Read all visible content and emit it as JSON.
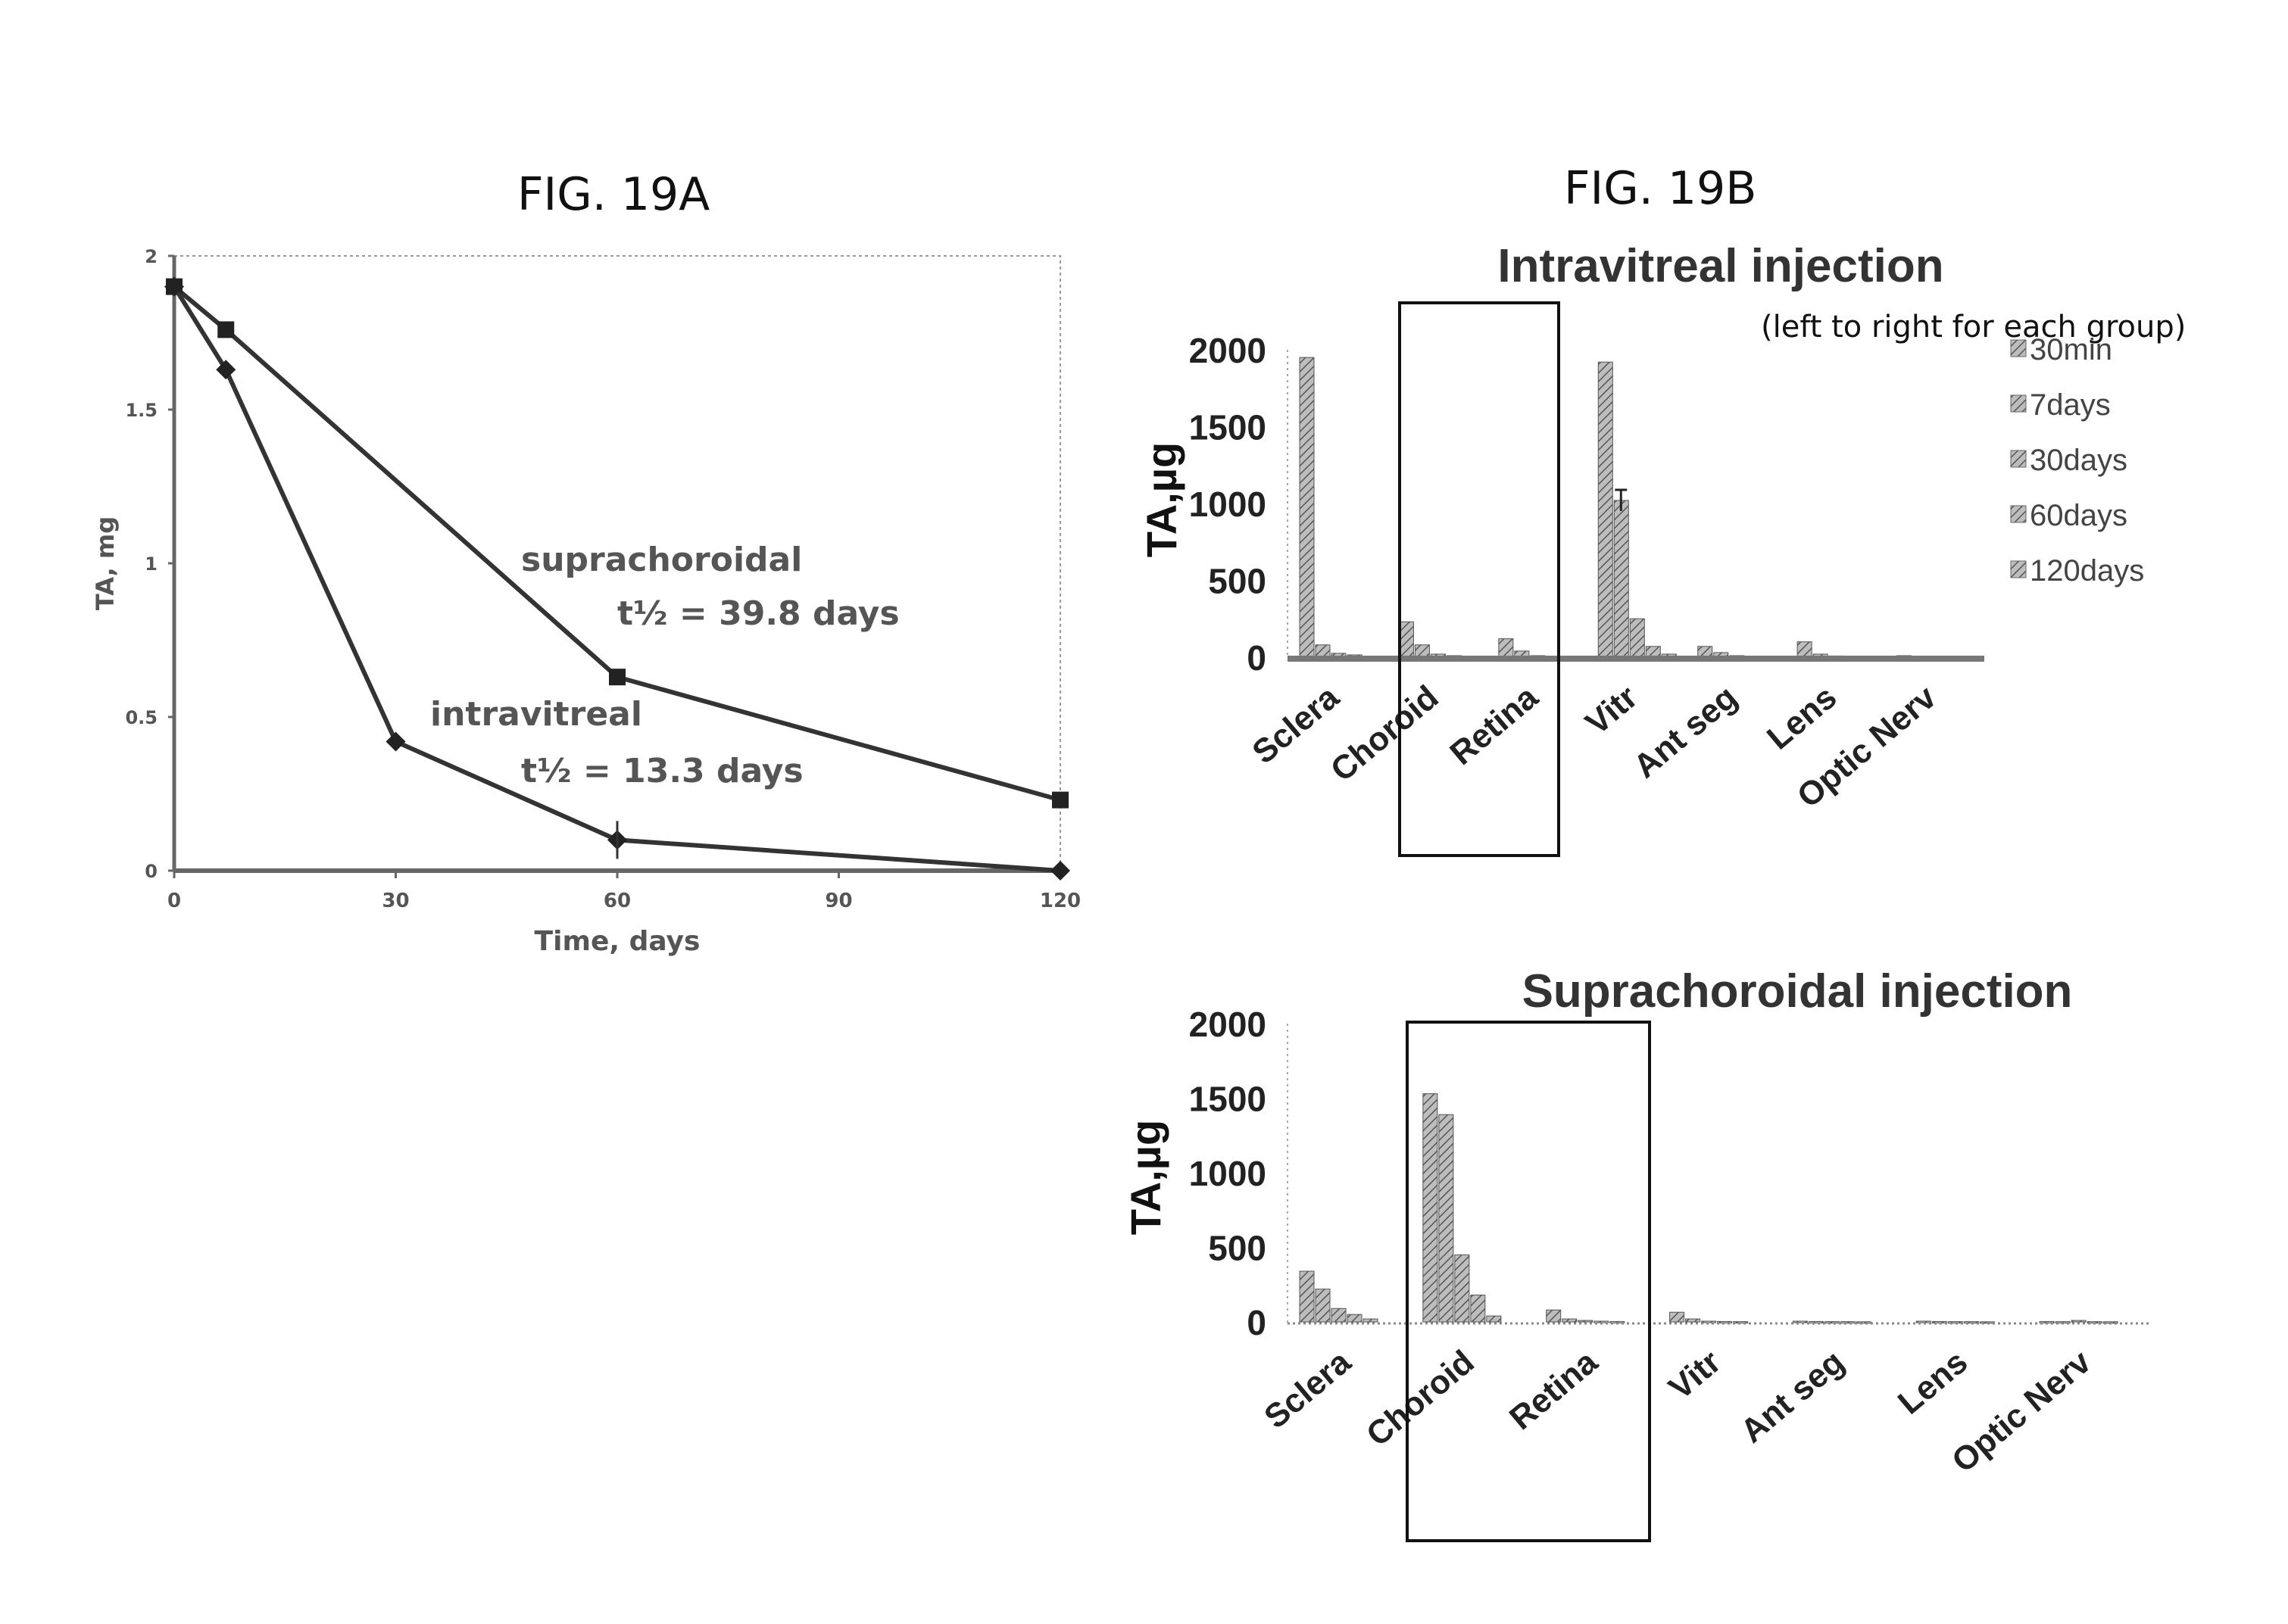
{
  "chart_data": [
    {
      "id": "fig19a",
      "type": "line",
      "title": "FIG. 19A",
      "xlabel": "Time, days",
      "ylabel": "TA, mg",
      "xlim": [
        0,
        120
      ],
      "ylim": [
        0,
        2
      ],
      "xticks": [
        "0",
        "30",
        "60",
        "90",
        "120"
      ],
      "yticks": [
        "0",
        "0.5",
        "1",
        "1.5",
        "2"
      ],
      "grid": false,
      "series": [
        {
          "name": "suprachoroidal",
          "x": [
            0,
            7,
            60,
            120
          ],
          "y": [
            1.9,
            1.76,
            0.63,
            0.23
          ]
        },
        {
          "name": "intravitreal",
          "x": [
            0,
            7,
            30,
            60,
            120
          ],
          "y": [
            1.9,
            1.63,
            0.42,
            0.1,
            0.0
          ]
        }
      ],
      "annotations": {
        "supra_label": "suprachoroidal",
        "supra_half_life": "t½ = 39.8 days",
        "intra_label": "intravitreal",
        "intra_half_life": "t½ = 13.3 days"
      }
    },
    {
      "id": "fig19b_intravitreal",
      "type": "bar",
      "figure_label": "FIG. 19B",
      "title": "Intravitreal injection",
      "note": "(left to right for each group)",
      "ylabel": "TA,µg",
      "ylim": [
        0,
        2000
      ],
      "yticks": [
        "0",
        "500",
        "1000",
        "1500",
        "2000"
      ],
      "categories": [
        "Sclera",
        "Choroid",
        "Retina",
        "Vitr",
        "Ant seg",
        "Lens",
        "Optic Nerv"
      ],
      "legend": [
        "30min",
        "7days",
        "30days",
        "60days",
        "120days"
      ],
      "legend_position": "right",
      "highlight_box": [
        "Choroid",
        "Retina"
      ],
      "series": [
        {
          "name": "30min",
          "values": [
            1950,
            230,
            120,
            1920,
            70,
            100,
            10
          ]
        },
        {
          "name": "7days",
          "values": [
            80,
            80,
            40,
            1020,
            30,
            20,
            5
          ]
        },
        {
          "name": "30days",
          "values": [
            25,
            20,
            10,
            250,
            10,
            8,
            3
          ]
        },
        {
          "name": "60days",
          "values": [
            15,
            10,
            5,
            70,
            5,
            3,
            2
          ]
        },
        {
          "name": "120days",
          "values": [
            5,
            5,
            3,
            20,
            3,
            2,
            1
          ]
        }
      ]
    },
    {
      "id": "fig19b_suprachoroidal",
      "type": "bar",
      "title": "Suprachoroidal injection",
      "ylabel": "TA,µg",
      "ylim": [
        0,
        2000
      ],
      "yticks": [
        "0",
        "500",
        "1000",
        "1500",
        "2000"
      ],
      "categories": [
        "Sclera",
        "Choroid",
        "Retina",
        "Vitr",
        "Ant seg",
        "Lens",
        "Optic Nerv"
      ],
      "highlight_box": [
        "Choroid",
        "Retina"
      ],
      "series": [
        {
          "name": "30min",
          "values": [
            340,
            1530,
            80,
            65,
            5,
            5,
            3
          ]
        },
        {
          "name": "7days",
          "values": [
            220,
            1390,
            20,
            20,
            3,
            3,
            2
          ]
        },
        {
          "name": "30days",
          "values": [
            90,
            450,
            10,
            5,
            2,
            2,
            10
          ]
        },
        {
          "name": "60days",
          "values": [
            50,
            180,
            5,
            3,
            2,
            2,
            2
          ]
        },
        {
          "name": "120days",
          "values": [
            20,
            40,
            3,
            2,
            1,
            1,
            1
          ]
        }
      ]
    }
  ],
  "colors": {
    "line": "#333333",
    "marker": "#222222",
    "bar_fill": "#9a9a9a",
    "bar_stroke": "#555555",
    "axis": "#666666",
    "box": "#111111"
  }
}
